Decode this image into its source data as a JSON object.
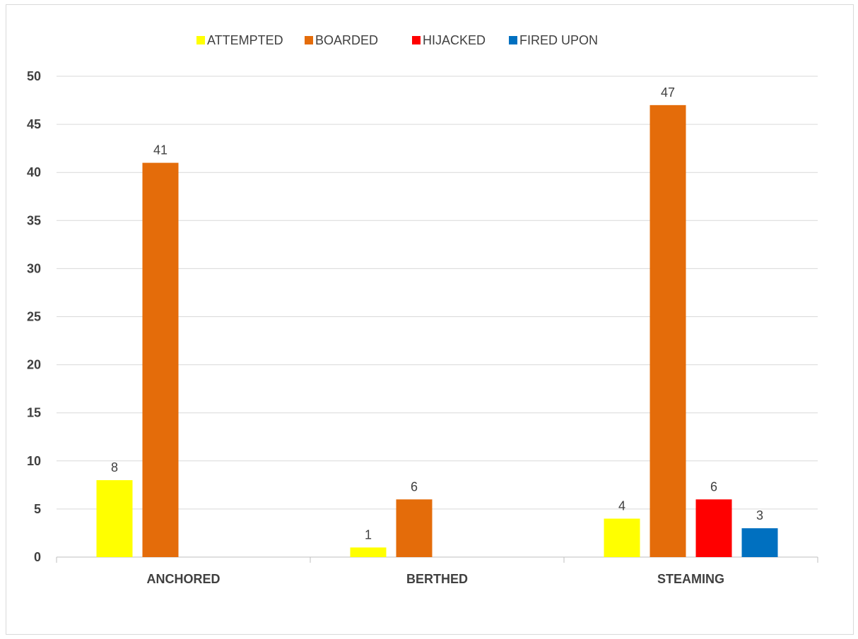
{
  "chart_data": {
    "type": "bar",
    "categories": [
      "ANCHORED",
      "BERTHED",
      "STEAMING"
    ],
    "series": [
      {
        "name": "ATTEMPTED",
        "color": "#ffff00",
        "values": [
          8,
          1,
          4
        ]
      },
      {
        "name": "BOARDED",
        "color": "#e46c0a",
        "values": [
          41,
          6,
          47
        ]
      },
      {
        "name": "HIJACKED",
        "color": "#ff0000",
        "values": [
          null,
          null,
          6
        ]
      },
      {
        "name": "FIRED UPON",
        "color": "#0070c0",
        "values": [
          null,
          null,
          3
        ]
      }
    ],
    "title": "",
    "xlabel": "",
    "ylabel": "",
    "ylim": [
      0,
      50
    ],
    "yticks": [
      0,
      5,
      10,
      15,
      20,
      25,
      30,
      35,
      40,
      45,
      50
    ],
    "grid": true,
    "legend_position": "top",
    "data_labels": true
  }
}
